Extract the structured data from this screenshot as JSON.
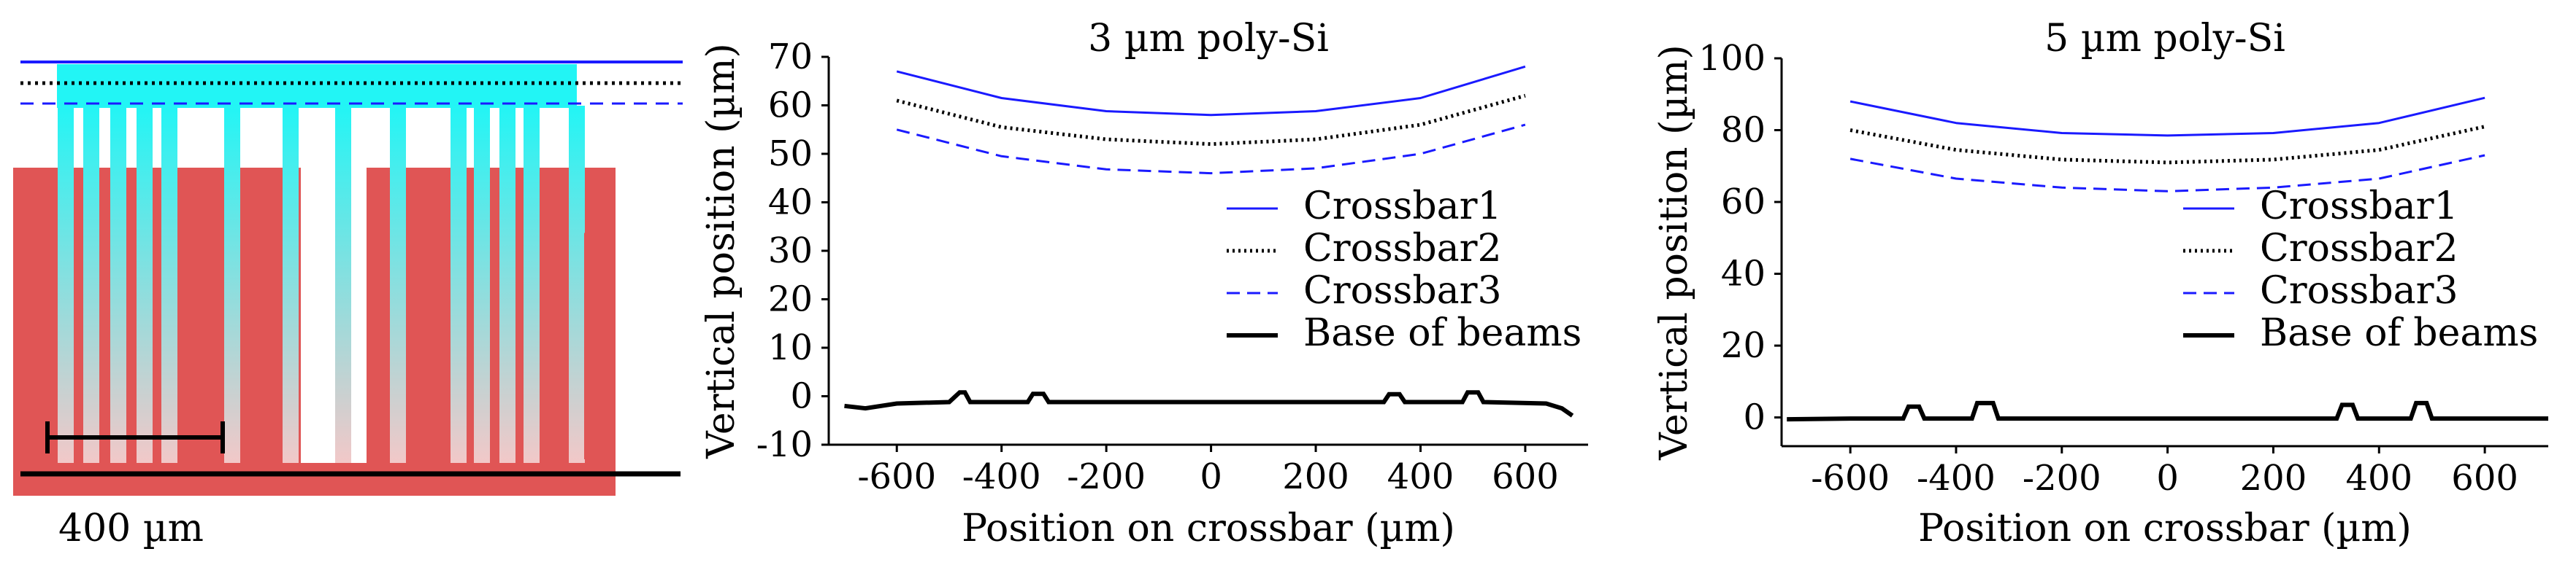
{
  "photo": {
    "scale_bar_label": "400 µm",
    "body_color": "#e05555",
    "beam_gradient_top": "#22f5f5",
    "beam_gradient_bottom": "#f2c8c8",
    "line_colors": {
      "crossbar1": "#1a1aff",
      "crossbar2": "#000000",
      "crossbar3": "#1a1aff",
      "base": "#000000"
    }
  },
  "chart_data": [
    {
      "type": "line",
      "title": "3 µm poly-Si",
      "xlabel": "Position on crossbar (µm)",
      "ylabel": "Vertical position (µm)",
      "xlim": [
        -730,
        720
      ],
      "ylim": [
        -10,
        70
      ],
      "xticks": [
        -600,
        -400,
        -200,
        0,
        200,
        400,
        600
      ],
      "yticks": [
        -10,
        0,
        10,
        20,
        30,
        40,
        50,
        60,
        70
      ],
      "legend_position": "center-right",
      "series": [
        {
          "name": "Crossbar1",
          "style": "solid",
          "color": "#1a1aff",
          "x": [
            -600,
            -400,
            -200,
            0,
            200,
            400,
            600
          ],
          "y": [
            67,
            61.5,
            58.8,
            58,
            58.8,
            61.5,
            68
          ]
        },
        {
          "name": "Crossbar2",
          "style": "dotted",
          "color": "#000000",
          "x": [
            -600,
            -400,
            -200,
            0,
            200,
            400,
            600
          ],
          "y": [
            61,
            55.5,
            53,
            52,
            53,
            56,
            62
          ]
        },
        {
          "name": "Crossbar3",
          "style": "dashed",
          "color": "#1a1aff",
          "x": [
            -600,
            -400,
            -200,
            0,
            200,
            400,
            600
          ],
          "y": [
            55,
            49.5,
            46.8,
            46,
            47,
            50,
            56
          ]
        },
        {
          "name": "Base of beams",
          "style": "solid-thick",
          "color": "#000000",
          "x": [
            -700,
            -660,
            -600,
            -500,
            -480,
            -470,
            -460,
            -350,
            -340,
            -320,
            -310,
            0,
            330,
            340,
            360,
            370,
            480,
            490,
            510,
            520,
            640,
            670,
            690
          ],
          "y": [
            -2,
            -2.5,
            -1.5,
            -1.2,
            0.8,
            0.8,
            -1.2,
            -1.2,
            0.5,
            0.5,
            -1.2,
            -1.2,
            -1.2,
            0.4,
            0.4,
            -1.2,
            -1.2,
            0.8,
            0.8,
            -1.2,
            -1.5,
            -2.5,
            -4
          ]
        }
      ]
    },
    {
      "type": "line",
      "title": "5 µm poly-Si",
      "xlabel": "Position on crossbar (µm)",
      "ylabel": "Vertical position (µm)",
      "xlim": [
        -730,
        720
      ],
      "ylim": [
        -8,
        100
      ],
      "xticks": [
        -600,
        -400,
        -200,
        0,
        200,
        400,
        600
      ],
      "yticks": [
        0,
        20,
        40,
        60,
        80,
        100
      ],
      "legend_position": "center-right",
      "series": [
        {
          "name": "Crossbar1",
          "style": "solid",
          "color": "#1a1aff",
          "x": [
            -600,
            -400,
            -200,
            0,
            200,
            400,
            600
          ],
          "y": [
            88,
            82,
            79.2,
            78.5,
            79.2,
            82,
            89
          ]
        },
        {
          "name": "Crossbar2",
          "style": "dotted",
          "color": "#000000",
          "x": [
            -600,
            -400,
            -200,
            0,
            200,
            400,
            600
          ],
          "y": [
            80,
            74.5,
            71.8,
            71,
            71.8,
            74.5,
            81
          ]
        },
        {
          "name": "Crossbar3",
          "style": "dashed",
          "color": "#1a1aff",
          "x": [
            -600,
            -400,
            -200,
            0,
            200,
            400,
            600
          ],
          "y": [
            72,
            66.5,
            64,
            63,
            64,
            66.5,
            73
          ]
        },
        {
          "name": "Base of beams",
          "style": "solid-thick",
          "color": "#000000",
          "x": [
            -720,
            -600,
            -500,
            -490,
            -470,
            -460,
            -370,
            -360,
            -330,
            -320,
            0,
            320,
            330,
            350,
            360,
            460,
            470,
            490,
            500,
            720
          ],
          "y": [
            -0.5,
            -0.3,
            -0.3,
            3,
            3,
            -0.3,
            -0.3,
            4,
            4,
            -0.3,
            -0.3,
            -0.3,
            3.5,
            3.5,
            -0.3,
            -0.3,
            4,
            4,
            -0.3,
            -0.3
          ]
        }
      ]
    }
  ]
}
